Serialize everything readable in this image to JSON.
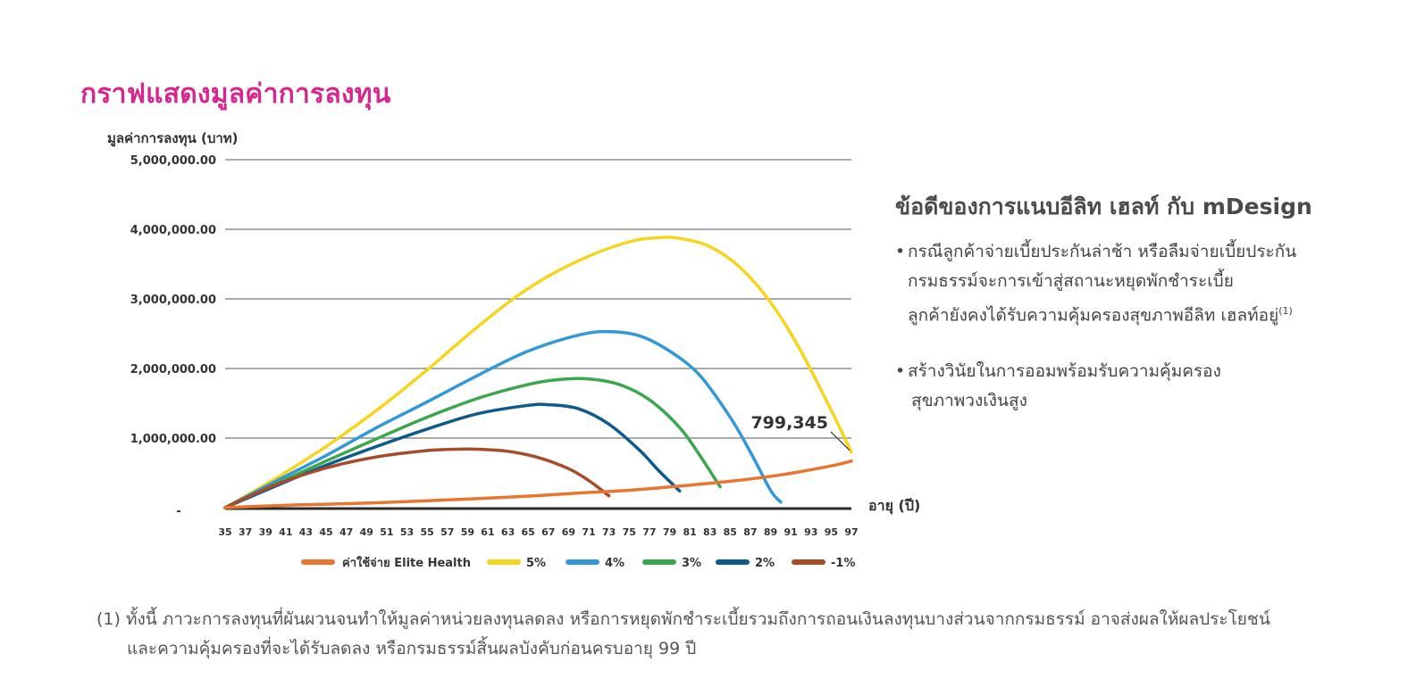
{
  "page": {
    "title": "กราฟแสดงมูลค่าการลงทุน"
  },
  "chart_data": {
    "type": "line",
    "ylabel": "มูลค่าการลงทุน (บาท)",
    "xlabel": "อายุ (ปี)",
    "ylim": [
      0,
      5000000
    ],
    "xlim": [
      35,
      97
    ],
    "yticks": [
      "-",
      "1,000,000.00",
      "2,000,000.00",
      "3,000,000.00",
      "4,000,000.00",
      "5,000,000.00"
    ],
    "xticks": [
      35,
      37,
      39,
      41,
      43,
      45,
      47,
      49,
      51,
      53,
      55,
      57,
      59,
      61,
      63,
      65,
      67,
      69,
      71,
      73,
      75,
      77,
      79,
      81,
      83,
      85,
      87,
      89,
      91,
      93,
      95,
      97
    ],
    "grid": true,
    "legend_position": "bottom",
    "annotation": {
      "text": "799,345",
      "x": 97,
      "y": 799345
    },
    "series": [
      {
        "name": "ค่าใช้จ่าย Elite Health",
        "color": "#e87530",
        "x": [
          35,
          40,
          45,
          50,
          55,
          60,
          65,
          70,
          75,
          80,
          85,
          90,
          95,
          97
        ],
        "y": [
          0,
          30000,
          50000,
          70000,
          100000,
          130000,
          165000,
          210000,
          250000,
          310000,
          380000,
          470000,
          600000,
          670000
        ]
      },
      {
        "name": "5%",
        "color": "#f5d51e",
        "x": [
          35,
          40,
          45,
          50,
          55,
          60,
          65,
          70,
          75,
          78,
          80,
          83,
          86,
          89,
          92,
          95,
          97
        ],
        "y": [
          0,
          420000,
          880000,
          1400000,
          1980000,
          2600000,
          3150000,
          3550000,
          3820000,
          3880000,
          3870000,
          3750000,
          3450000,
          2950000,
          2250000,
          1400000,
          799345
        ]
      },
      {
        "name": "4%",
        "color": "#3399d6",
        "x": [
          35,
          40,
          45,
          50,
          55,
          60,
          65,
          70,
          73,
          76,
          79,
          82,
          85,
          87,
          89,
          90
        ],
        "y": [
          0,
          380000,
          750000,
          1150000,
          1520000,
          1900000,
          2250000,
          2480000,
          2530000,
          2470000,
          2250000,
          1900000,
          1300000,
          800000,
          250000,
          80000
        ]
      },
      {
        "name": "3%",
        "color": "#3ca64f",
        "x": [
          35,
          40,
          45,
          50,
          55,
          60,
          65,
          68,
          71,
          74,
          77,
          80,
          82,
          84
        ],
        "y": [
          0,
          340000,
          670000,
          990000,
          1300000,
          1570000,
          1770000,
          1840000,
          1850000,
          1770000,
          1550000,
          1150000,
          750000,
          300000
        ]
      },
      {
        "name": "2%",
        "color": "#0e5a8a",
        "x": [
          35,
          40,
          45,
          50,
          55,
          60,
          65,
          67,
          70,
          73,
          76,
          78,
          80
        ],
        "y": [
          0,
          310000,
          610000,
          880000,
          1130000,
          1350000,
          1470000,
          1480000,
          1420000,
          1200000,
          830000,
          520000,
          240000
        ]
      },
      {
        "name": "-1%",
        "color": "#a64c2a",
        "x": [
          35,
          40,
          45,
          50,
          55,
          58,
          60,
          63,
          66,
          69,
          71,
          73
        ],
        "y": [
          0,
          330000,
          570000,
          730000,
          820000,
          840000,
          840000,
          810000,
          720000,
          560000,
          390000,
          170000
        ]
      }
    ]
  },
  "benefits": {
    "heading": "ข้อดีของการแนบอีลิท เฮลท์ กับ mDesign",
    "items": [
      {
        "bullet": "•",
        "lines": [
          "กรณีลูกค้าจ่ายเบี้ยประกันล่าช้า หรือลืมจ่ายเบี้ยประกัน",
          "กรมธรรม์จะการเข้าสู่สถานะหยุดพักชำระเบี้ย",
          "ลูกค้ายังคงได้รับความคุ้มครองสุขภาพอีลิท เฮลท์อยู่"
        ],
        "sup": "(1)"
      },
      {
        "bullet": "•",
        "lines": [
          "สร้างวินัยในการออมพร้อมรับความคุ้มครอง",
          "สุขภาพวงเงินสูง"
        ]
      }
    ]
  },
  "footnote": {
    "line1": "(1) ทั้งนี้ ภาวะการลงทุนที่ผันผวนจนทำให้มูลค่าหน่วยลงทุนลดลง หรือการหยุดพักชำระเบี้ยรวมถึงการถอนเงินลงทุนบางส่วนจากกรมธรรม์  อาจส่งผลให้ผลประโยชน์",
    "line2": "และความคุ้มครองที่จะได้รับลดลง หรือกรมธรรม์สิ้นผลบังคับก่อนครบอายุ 99 ปี"
  }
}
